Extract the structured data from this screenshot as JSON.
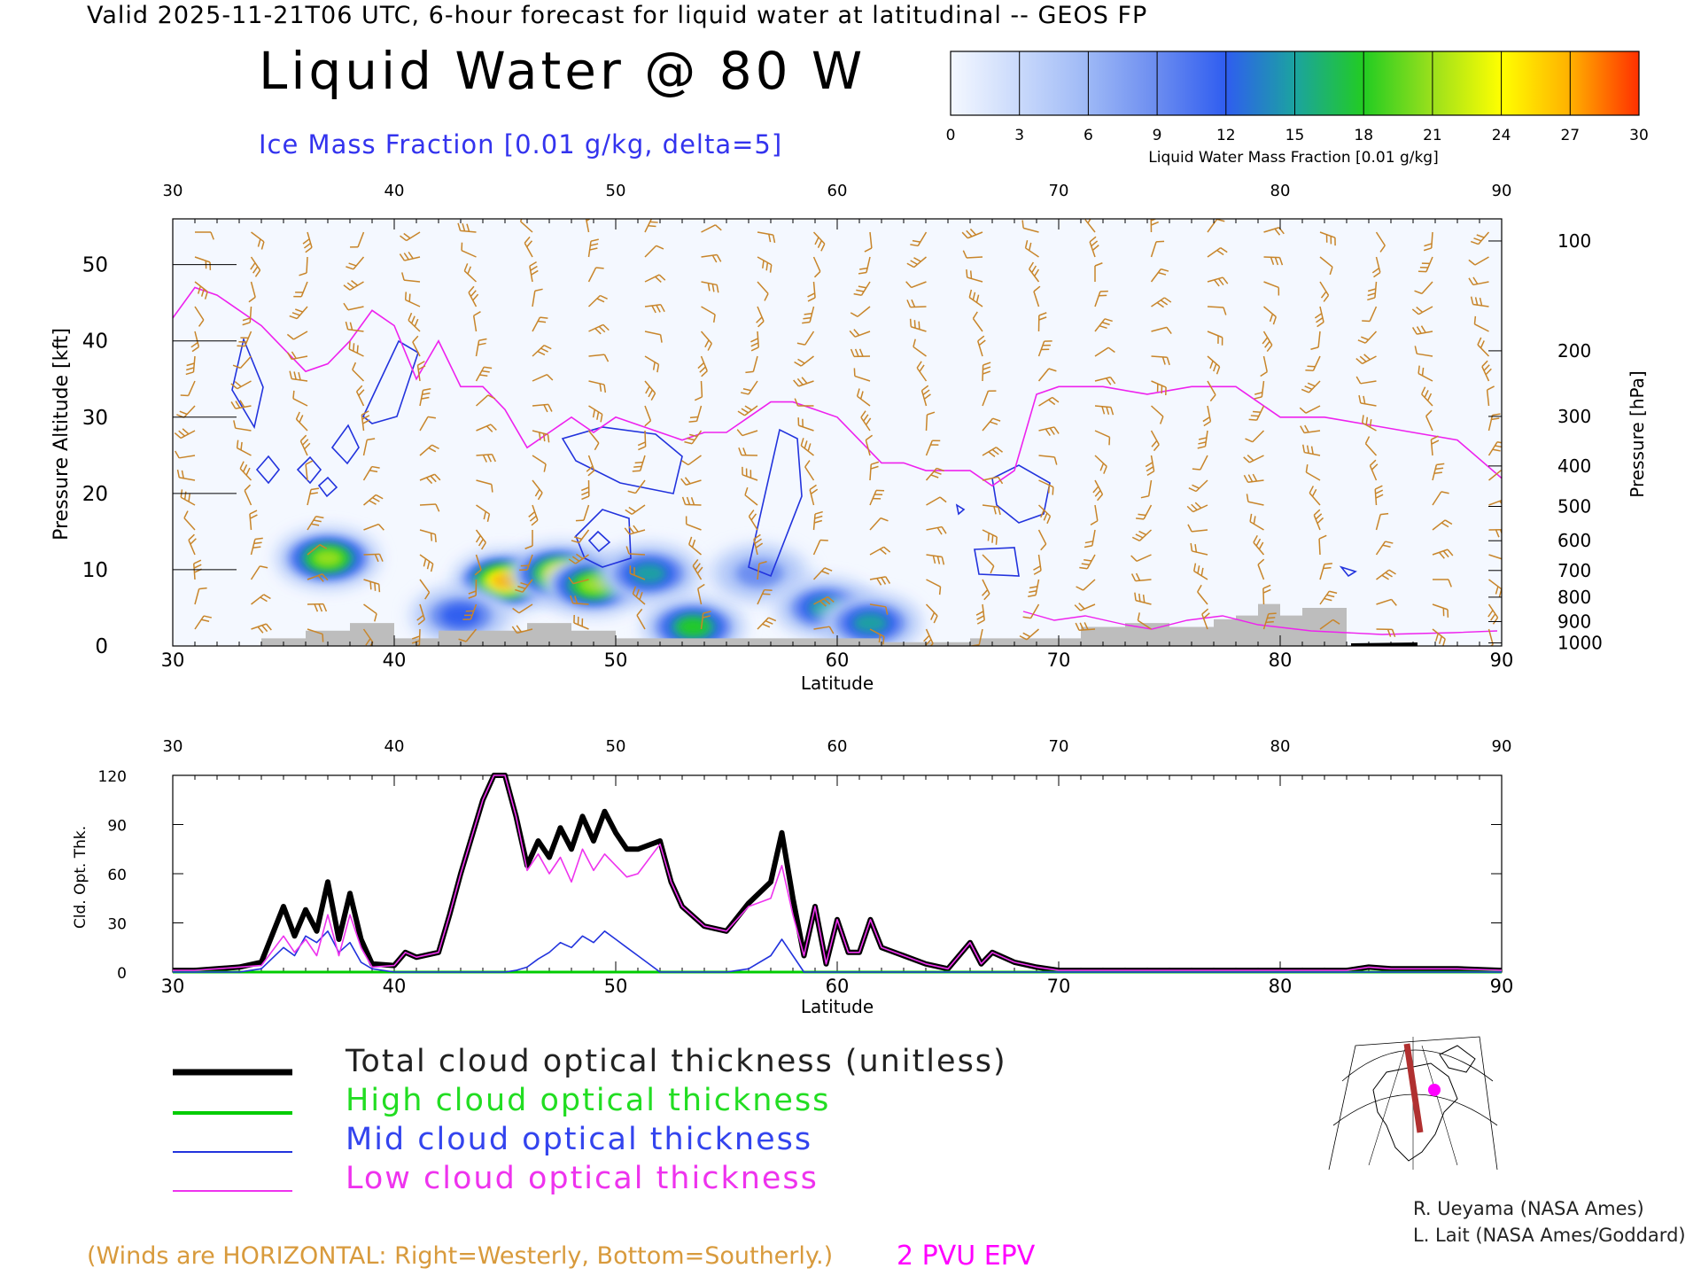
{
  "header": {
    "valid_line": "Valid 2025-11-21T06 UTC, 6-hour forecast for liquid water at latitudinal -- GEOS FP",
    "title": "Liquid Water @ 80 W",
    "subtitle": "Ice Mass Fraction [0.01 g/kg, delta=5]"
  },
  "colorbar": {
    "ticks": [
      "0",
      "3",
      "6",
      "9",
      "12",
      "15",
      "18",
      "21",
      "24",
      "27",
      "30"
    ],
    "label": "Liquid Water Mass Fraction [0.01 g/kg]",
    "colors": [
      "#f4f8ff",
      "#c9d9fb",
      "#9db8f6",
      "#6b8cf0",
      "#2f5df0",
      "#1ba3a0",
      "#22cc22",
      "#9be01c",
      "#ffff00",
      "#ffb000",
      "#ff3000"
    ]
  },
  "colors": {
    "total": "#000000",
    "high": "#00cc00",
    "mid": "#2233dd",
    "low": "#ee33ee",
    "tropopause": "#ee22ee",
    "wind_barbs": "#c8852a",
    "terrain": "#bdbdbd",
    "ice_contour": "#2233dd"
  },
  "chart_data": [
    {
      "type": "heatmap",
      "title": "Liquid Water @ 80 W",
      "xlabel": "Latitude",
      "ylabel": "Pressure Altitude [kft]",
      "ylabel_right": "Pressure [hPa]",
      "xlim": [
        30,
        90
      ],
      "ylim": [
        0,
        56
      ],
      "x_ticks": [
        30,
        40,
        50,
        60,
        70,
        80,
        90
      ],
      "y_ticks": [
        0,
        10,
        20,
        30,
        40,
        50
      ],
      "pressure_ticks": [
        {
          "hpa": "100",
          "kft": 53.1
        },
        {
          "hpa": "200",
          "kft": 38.7
        },
        {
          "hpa": "300",
          "kft": 30.1
        },
        {
          "hpa": "400",
          "kft": 23.6
        },
        {
          "hpa": "500",
          "kft": 18.3
        },
        {
          "hpa": "600",
          "kft": 13.8
        },
        {
          "hpa": "700",
          "kft": 9.9
        },
        {
          "hpa": "800",
          "kft": 6.4
        },
        {
          "hpa": "900",
          "kft": 3.2
        },
        {
          "hpa": "1000",
          "kft": 0.4
        }
      ],
      "tropopause_2pvu": {
        "lat": [
          30,
          31,
          32,
          34,
          36,
          37,
          38,
          39,
          40,
          41,
          42,
          43,
          44,
          45,
          46,
          47,
          48,
          49,
          50,
          51,
          52,
          53,
          54,
          55,
          56,
          57,
          58,
          59,
          60,
          61,
          62,
          63,
          64,
          65,
          66,
          67,
          68,
          69,
          70,
          72,
          74,
          76,
          78,
          80,
          82,
          84,
          86,
          88,
          90
        ],
        "kft": [
          43,
          47,
          46,
          42,
          36,
          37,
          40,
          44,
          42,
          35,
          40,
          34,
          34,
          31,
          26,
          28,
          30,
          28,
          30,
          29,
          28,
          27,
          28,
          28,
          30,
          32,
          32,
          31,
          30,
          27,
          24,
          24,
          23,
          23,
          23,
          21,
          23,
          33,
          34,
          34,
          33,
          34,
          34,
          30,
          30,
          29,
          28,
          27,
          22
        ]
      },
      "liquid_water_blobs": [
        {
          "lat": 37.0,
          "kft": 11.5,
          "peak": 21
        },
        {
          "lat": 45.0,
          "kft": 8.5,
          "peak": 27
        },
        {
          "lat": 47.5,
          "kft": 9.5,
          "peak": 25
        },
        {
          "lat": 49.0,
          "kft": 8.0,
          "peak": 20
        },
        {
          "lat": 51.5,
          "kft": 9.5,
          "peak": 15
        },
        {
          "lat": 53.5,
          "kft": 2.5,
          "peak": 18
        },
        {
          "lat": 56.5,
          "kft": 9.5,
          "peak": 9
        },
        {
          "lat": 59.5,
          "kft": 5.0,
          "peak": 14
        },
        {
          "lat": 61.5,
          "kft": 3.0,
          "peak": 14
        },
        {
          "lat": 43.0,
          "kft": 4.0,
          "peak": 12
        }
      ],
      "terrain_kft": {
        "lat": [
          34,
          36,
          38,
          40,
          42,
          44,
          46,
          48,
          50,
          52,
          54,
          56,
          58,
          60,
          62,
          64,
          66,
          68,
          70,
          71,
          73,
          75,
          77,
          78,
          79,
          80,
          81,
          83
        ],
        "kft": [
          1,
          2,
          3,
          1,
          2,
          2,
          3,
          2,
          1,
          1,
          1,
          1,
          1,
          1,
          0.5,
          0.5,
          1,
          1,
          1,
          2.5,
          3,
          2.5,
          3.5,
          4,
          5.5,
          4,
          5,
          0
        ]
      }
    },
    {
      "type": "line",
      "xlabel": "Latitude",
      "ylabel": "Cld. Opt. Thk.",
      "xlim": [
        30,
        90
      ],
      "ylim": [
        0,
        120
      ],
      "x_ticks": [
        30,
        40,
        50,
        60,
        70,
        80,
        90
      ],
      "y_ticks": [
        0,
        30,
        60,
        90,
        120
      ],
      "x": [
        30,
        31,
        32,
        33,
        34,
        35,
        35.5,
        36,
        36.5,
        37,
        37.5,
        38,
        38.5,
        39,
        40,
        40.5,
        41,
        42,
        42.5,
        43,
        44,
        44.5,
        45,
        45.5,
        46,
        46.5,
        47,
        47.5,
        48,
        48.5,
        49,
        49.5,
        50,
        50.5,
        51,
        52,
        52.5,
        53,
        54,
        55,
        56,
        57,
        57.5,
        58,
        58.5,
        59,
        59.5,
        60,
        60.5,
        61,
        61.5,
        62,
        63,
        64,
        65,
        66,
        66.5,
        67,
        68,
        69,
        70,
        75,
        80,
        83,
        84,
        85,
        88,
        90
      ],
      "series": [
        {
          "name": "Total cloud optical thickness (unitless)",
          "values": [
            1,
            1,
            2,
            3,
            6,
            40,
            22,
            38,
            25,
            55,
            20,
            48,
            20,
            5,
            4,
            12,
            9,
            12,
            35,
            60,
            105,
            125,
            120,
            95,
            65,
            80,
            70,
            88,
            75,
            95,
            80,
            98,
            85,
            75,
            75,
            80,
            55,
            40,
            28,
            25,
            42,
            55,
            85,
            45,
            10,
            40,
            5,
            32,
            12,
            12,
            32,
            15,
            10,
            5,
            2,
            18,
            5,
            12,
            6,
            3,
            1,
            1,
            1,
            1,
            3,
            2,
            2,
            1
          ]
        },
        {
          "name": "High cloud optical thickness",
          "values": [
            0,
            0,
            0,
            0,
            0,
            0,
            0,
            0,
            0,
            0,
            0,
            0,
            0,
            0,
            0,
            0,
            0,
            0,
            0,
            0,
            0,
            0,
            0,
            0,
            0,
            0,
            0,
            0,
            0,
            0,
            0,
            0,
            0,
            0,
            0,
            0,
            0,
            0,
            0,
            0,
            0,
            0,
            0,
            0,
            0,
            0,
            0,
            0,
            0,
            0,
            0,
            0,
            0,
            0,
            0,
            0,
            0,
            0,
            0,
            0,
            0,
            0,
            0,
            0,
            0,
            0,
            0,
            0
          ]
        },
        {
          "name": "Mid cloud optical thickness",
          "values": [
            0,
            0,
            0,
            0,
            2,
            15,
            10,
            22,
            18,
            25,
            12,
            18,
            6,
            2,
            0,
            0,
            0,
            0,
            0,
            0,
            0,
            0,
            0,
            1,
            3,
            8,
            12,
            18,
            15,
            22,
            18,
            25,
            20,
            15,
            10,
            0,
            0,
            0,
            0,
            0,
            2,
            10,
            20,
            10,
            0,
            0,
            0,
            0,
            0,
            0,
            0,
            0,
            0,
            0,
            0,
            0,
            0,
            0,
            0,
            0,
            0,
            0,
            0,
            0,
            0,
            0,
            0,
            0
          ]
        },
        {
          "name": "Low cloud optical thickness",
          "values": [
            1,
            1,
            2,
            3,
            4,
            22,
            12,
            20,
            10,
            35,
            10,
            35,
            15,
            3,
            4,
            12,
            9,
            12,
            35,
            60,
            105,
            125,
            120,
            95,
            62,
            72,
            60,
            70,
            55,
            75,
            62,
            72,
            65,
            58,
            60,
            78,
            55,
            40,
            28,
            25,
            40,
            45,
            65,
            35,
            10,
            40,
            5,
            32,
            12,
            12,
            32,
            15,
            10,
            5,
            2,
            18,
            5,
            12,
            6,
            3,
            1,
            1,
            1,
            1,
            3,
            2,
            2,
            1
          ]
        }
      ]
    }
  ],
  "legend": {
    "total": "Total cloud optical thickness (unitless)",
    "high": "High cloud optical thickness",
    "mid": "Mid cloud optical thickness",
    "low": "Low cloud optical thickness"
  },
  "footer": {
    "winds_note": "(Winds are HORIZONTAL: Right=Westerly, Bottom=Southerly.)",
    "pvu_note": "2 PVU EPV",
    "credit_1": "R. Ueyama (NASA Ames)",
    "credit_2": "L. Lait (NASA Ames/Goddard)"
  }
}
